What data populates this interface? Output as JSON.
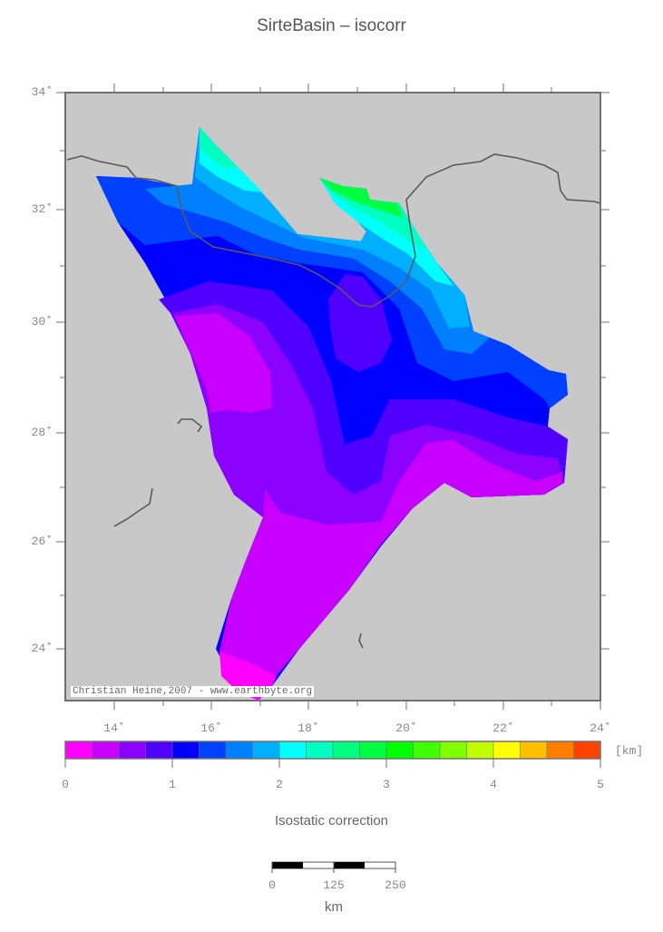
{
  "title": "SirteBasin – isocorr",
  "map": {
    "lat_labels": [
      "34˚",
      "32˚",
      "30˚",
      "28˚",
      "26˚",
      "24˚"
    ],
    "lon_labels": [
      "14˚",
      "16˚",
      "18˚",
      "20˚",
      "22˚",
      "24˚"
    ],
    "credit": "Christian Heine,2007 - www.earthbyte.org",
    "land_color": "#c8c8c8",
    "coastline_color": "#5a5a5a"
  },
  "colorbar": {
    "unit": "[km]",
    "tick_labels": [
      "0",
      "1",
      "2",
      "3",
      "4",
      "5"
    ],
    "title": "Isostatic correction",
    "colors": [
      "#ff00ff",
      "#c800ff",
      "#8c00ff",
      "#5000ff",
      "#0000ff",
      "#0040ff",
      "#0080ff",
      "#00b0ff",
      "#00ffff",
      "#00ffc0",
      "#00ff80",
      "#00ff40",
      "#00ff00",
      "#40ff00",
      "#80ff00",
      "#c0ff00",
      "#ffff00",
      "#ffc000",
      "#ff8000",
      "#ff4000"
    ]
  },
  "scalebar": {
    "labels": [
      "0",
      "125",
      "250"
    ],
    "unit": "km"
  }
}
